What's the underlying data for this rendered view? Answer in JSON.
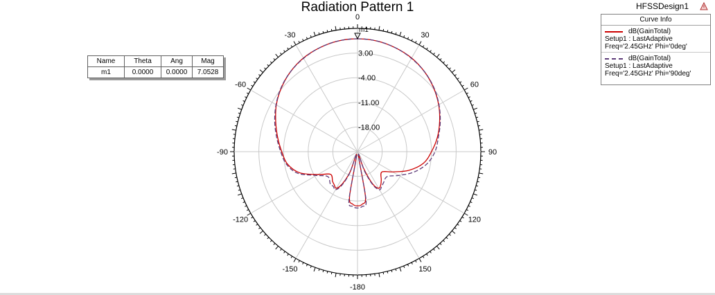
{
  "design_name": "HFSSDesign1",
  "chart_data": {
    "type": "polar",
    "title": "Radiation Pattern 1",
    "r_ticks": [
      3.0,
      -4.0,
      -11.0,
      -18.0
    ],
    "r_tick_labels": [
      "3.00",
      "-4.00",
      "-11.00",
      "-18.00"
    ],
    "r_range": [
      -25,
      10
    ],
    "angle_labels": [
      "0",
      "30",
      "60",
      "90",
      "120",
      "150",
      "-180",
      "-150",
      "-120",
      "-90",
      "-60",
      "-30"
    ],
    "grid": true,
    "legend": "top-right",
    "series": [
      {
        "name": "dB(GainTotal)",
        "color": "#cc0000",
        "style": "solid",
        "theta": [
          0,
          10,
          20,
          30,
          40,
          50,
          60,
          70,
          80,
          90,
          100,
          110,
          120,
          130,
          140,
          145,
          150,
          155,
          160,
          165,
          170,
          175,
          180,
          185,
          190,
          195,
          200,
          205,
          210,
          215,
          220,
          230,
          240,
          250,
          260,
          270,
          280,
          290,
          300,
          310,
          320,
          330,
          340,
          350
        ],
        "values": [
          7.05,
          6.9,
          6.4,
          5.7,
          4.6,
          3.2,
          1.6,
          -0.2,
          -2.0,
          -4.0,
          -6.0,
          -9.5,
          -13.5,
          -16.0,
          -14.5,
          -13.5,
          -13.0,
          -15.0,
          -20.0,
          -24.0,
          -12.0,
          -10.0,
          -9.6,
          -10.0,
          -12.0,
          -24.0,
          -19.0,
          -15.0,
          -13.0,
          -13.5,
          -14.0,
          -15.0,
          -12.0,
          -7.5,
          -4.8,
          -3.5,
          -2.0,
          -0.3,
          1.6,
          3.2,
          4.6,
          5.7,
          6.4,
          6.9
        ]
      },
      {
        "name": "dB(GainTotal)",
        "color": "#5c3a78",
        "style": "dashed",
        "theta": [
          0,
          10,
          20,
          30,
          40,
          50,
          60,
          70,
          80,
          90,
          100,
          110,
          120,
          130,
          140,
          145,
          150,
          155,
          160,
          165,
          170,
          175,
          180,
          185,
          190,
          195,
          200,
          205,
          210,
          215,
          220,
          230,
          240,
          250,
          260,
          270,
          280,
          290,
          300,
          310,
          320,
          330,
          340,
          350
        ],
        "values": [
          7.05,
          6.9,
          6.4,
          5.6,
          4.6,
          3.3,
          1.7,
          0.0,
          -1.7,
          -3.0,
          -5.0,
          -8.0,
          -11.5,
          -14.0,
          -13.5,
          -13.0,
          -12.5,
          -14.5,
          -19.0,
          -24.0,
          -11.0,
          -9.4,
          -9.0,
          -9.4,
          -11.0,
          -24.0,
          -18.5,
          -14.5,
          -12.5,
          -13.0,
          -13.0,
          -14.0,
          -11.5,
          -7.0,
          -4.5,
          -3.2,
          -1.7,
          0.0,
          1.7,
          3.3,
          4.6,
          5.6,
          6.4,
          6.9
        ]
      }
    ]
  },
  "legend": {
    "header": "Curve Info",
    "entries": [
      {
        "name": "dB(GainTotal)",
        "setup": "Setup1 : LastAdaptive",
        "freq": "Freq='2.45GHz' Phi='0deg'",
        "color": "#cc0000",
        "style": "solid"
      },
      {
        "name": "dB(GainTotal)",
        "setup": "Setup1 : LastAdaptive",
        "freq": "Freq='2.45GHz' Phi='90deg'",
        "color": "#5c3a78",
        "style": "dashed"
      }
    ]
  },
  "marker_table": {
    "headers": [
      "Name",
      "Theta",
      "Ang",
      "Mag"
    ],
    "rows": [
      [
        "m1",
        "0.0000",
        "0.0000",
        "7.0528"
      ]
    ],
    "marker_label": "m1"
  }
}
